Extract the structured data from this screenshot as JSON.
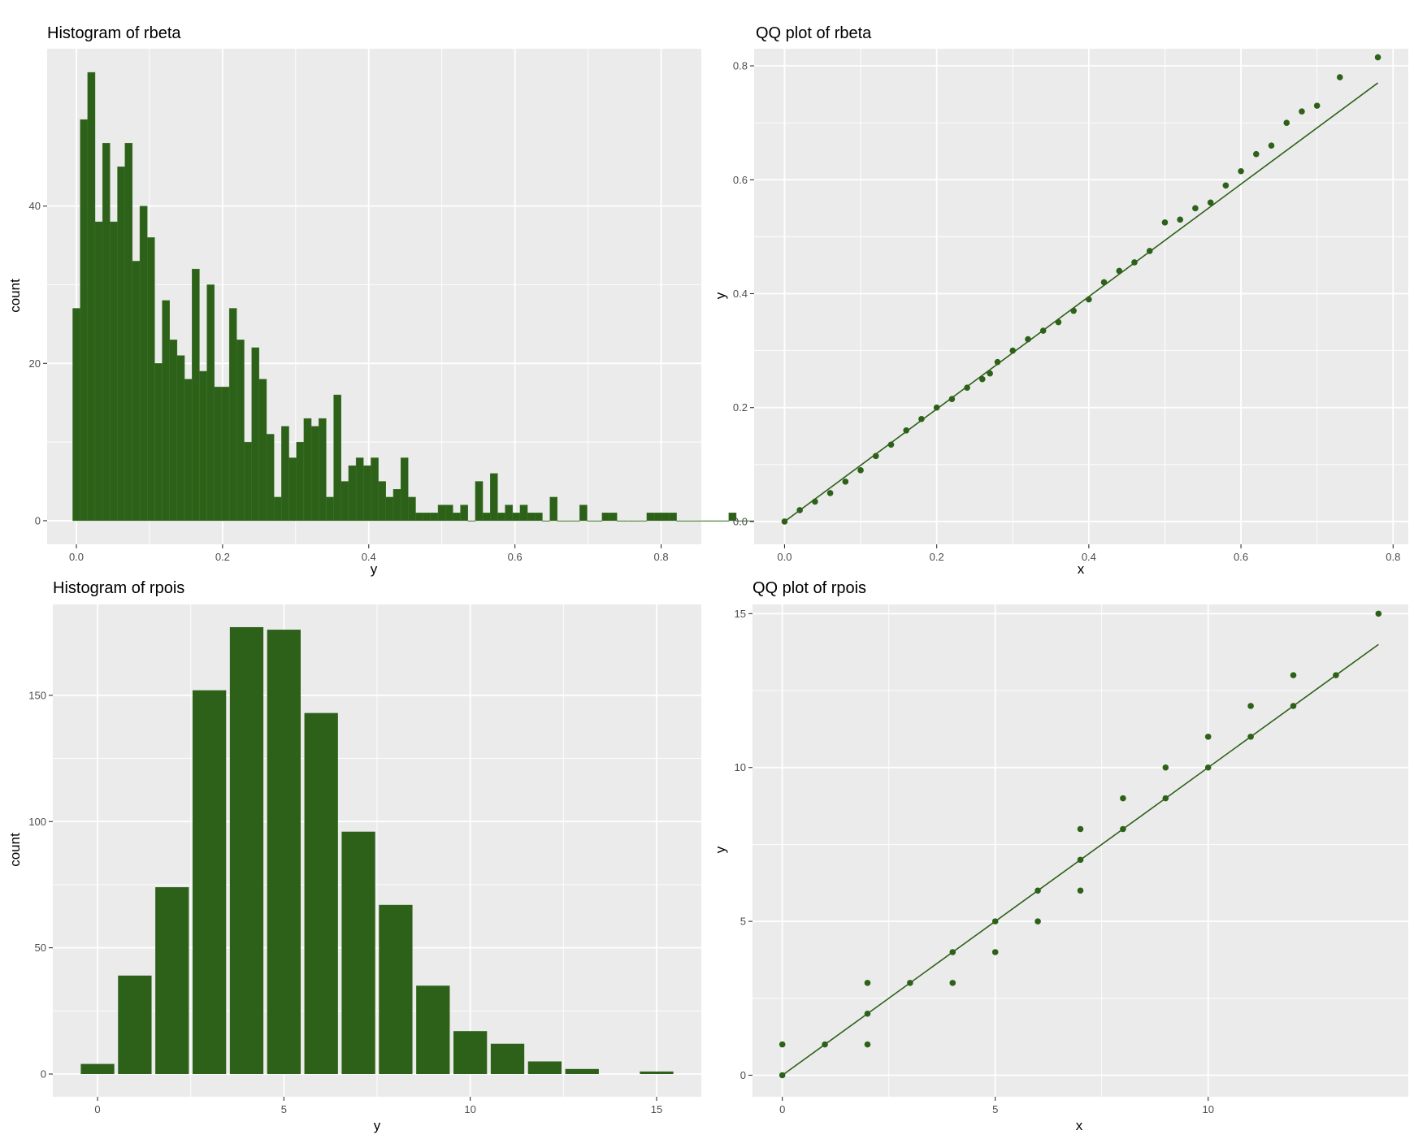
{
  "colors": {
    "fill": "#2d6119",
    "panel": "#ebebeb",
    "grid": "#ffffff",
    "tick": "#333333"
  },
  "chart_data": [
    {
      "type": "bar",
      "title": "Histogram of rbeta",
      "xlabel": "y",
      "ylabel": "count",
      "xlim": [
        -0.04,
        0.855
      ],
      "ylim": [
        -3,
        60
      ],
      "xticks": [
        0.0,
        0.2,
        0.4,
        0.6,
        0.8
      ],
      "xtick_labels": [
        "0.0",
        "0.2",
        "0.4",
        "0.6",
        "0.8"
      ],
      "yticks": [
        0,
        20,
        40
      ],
      "ytick_labels": [
        "0",
        "20",
        "40"
      ],
      "grid": true,
      "bin_start": -0.005,
      "binwidth": 0.0102,
      "values": [
        27,
        51,
        57,
        38,
        48,
        38,
        45,
        48,
        33,
        40,
        36,
        20,
        28,
        23,
        21,
        18,
        32,
        19,
        30,
        17,
        17,
        27,
        23,
        10,
        22,
        18,
        11,
        3,
        12,
        8,
        10,
        13,
        12,
        13,
        3,
        16,
        5,
        7,
        8,
        7,
        8,
        5,
        3,
        4,
        8,
        3,
        1,
        1,
        1,
        2,
        2,
        1,
        2,
        0,
        5,
        1,
        6,
        1,
        2,
        1,
        2,
        1,
        1,
        0,
        3,
        0,
        0,
        0,
        2,
        0,
        0,
        1,
        1,
        0,
        0,
        0,
        0,
        1,
        1,
        1,
        1,
        0,
        0,
        0,
        0,
        0,
        0,
        0,
        1,
        0,
        0,
        0,
        1
      ]
    },
    {
      "type": "scatter",
      "title": "QQ plot of rbeta",
      "xlabel": "x",
      "ylabel": "y",
      "xlim": [
        -0.04,
        0.82
      ],
      "ylim": [
        -0.04,
        0.83
      ],
      "xticks": [
        0.0,
        0.2,
        0.4,
        0.6,
        0.8
      ],
      "xtick_labels": [
        "0.0",
        "0.2",
        "0.4",
        "0.6",
        "0.8"
      ],
      "yticks": [
        0.0,
        0.2,
        0.4,
        0.6,
        0.8
      ],
      "ytick_labels": [
        "0.0",
        "0.2",
        "0.4",
        "0.6",
        "0.8"
      ],
      "grid": true,
      "line": {
        "x": [
          0.0,
          0.78
        ],
        "y": [
          0.0,
          0.77
        ]
      },
      "points": [
        [
          0.0,
          0.0
        ],
        [
          0.02,
          0.02
        ],
        [
          0.04,
          0.035
        ],
        [
          0.06,
          0.05
        ],
        [
          0.08,
          0.07
        ],
        [
          0.1,
          0.09
        ],
        [
          0.12,
          0.115
        ],
        [
          0.14,
          0.135
        ],
        [
          0.16,
          0.16
        ],
        [
          0.18,
          0.18
        ],
        [
          0.2,
          0.2
        ],
        [
          0.22,
          0.215
        ],
        [
          0.24,
          0.235
        ],
        [
          0.26,
          0.25
        ],
        [
          0.27,
          0.26
        ],
        [
          0.28,
          0.28
        ],
        [
          0.3,
          0.3
        ],
        [
          0.32,
          0.32
        ],
        [
          0.34,
          0.335
        ],
        [
          0.36,
          0.35
        ],
        [
          0.38,
          0.37
        ],
        [
          0.4,
          0.39
        ],
        [
          0.42,
          0.42
        ],
        [
          0.44,
          0.44
        ],
        [
          0.46,
          0.455
        ],
        [
          0.48,
          0.475
        ],
        [
          0.5,
          0.525
        ],
        [
          0.52,
          0.53
        ],
        [
          0.54,
          0.55
        ],
        [
          0.56,
          0.56
        ],
        [
          0.58,
          0.59
        ],
        [
          0.6,
          0.615
        ],
        [
          0.62,
          0.645
        ],
        [
          0.64,
          0.66
        ],
        [
          0.66,
          0.7
        ],
        [
          0.68,
          0.72
        ],
        [
          0.7,
          0.73
        ],
        [
          0.73,
          0.78
        ],
        [
          0.78,
          0.815
        ]
      ]
    },
    {
      "type": "bar",
      "title": "Histogram of rpois",
      "xlabel": "y",
      "ylabel": "count",
      "xlim": [
        -1.2,
        16.2
      ],
      "ylim": [
        -9,
        186
      ],
      "xticks": [
        0,
        5,
        10,
        15
      ],
      "xtick_labels": [
        "0",
        "5",
        "10",
        "15"
      ],
      "yticks": [
        0,
        50,
        100,
        150
      ],
      "ytick_labels": [
        "0",
        "50",
        "100",
        "150"
      ],
      "grid": true,
      "categories": [
        0,
        1,
        2,
        3,
        4,
        5,
        6,
        7,
        8,
        9,
        10,
        11,
        12,
        13,
        14,
        15
      ],
      "values": [
        4,
        39,
        74,
        152,
        177,
        176,
        143,
        96,
        67,
        35,
        17,
        12,
        5,
        2,
        0,
        1
      ]
    },
    {
      "type": "scatter",
      "title": "QQ plot of rpois",
      "xlabel": "x",
      "ylabel": "y",
      "xlim": [
        -0.7,
        14.7
      ],
      "ylim": [
        -0.7,
        15.3
      ],
      "xticks": [
        0,
        5,
        10
      ],
      "xtick_labels": [
        "0",
        "5",
        "10"
      ],
      "yticks": [
        0,
        5,
        10,
        15
      ],
      "ytick_labels": [
        "0",
        "5",
        "10",
        "15"
      ],
      "grid": true,
      "line": {
        "x": [
          0,
          14
        ],
        "y": [
          0,
          14
        ]
      },
      "points": [
        [
          0,
          0
        ],
        [
          0,
          1
        ],
        [
          1,
          1
        ],
        [
          2,
          1
        ],
        [
          2,
          2
        ],
        [
          2,
          3
        ],
        [
          3,
          3
        ],
        [
          4,
          3
        ],
        [
          4,
          4
        ],
        [
          5,
          4
        ],
        [
          5,
          5
        ],
        [
          6,
          5
        ],
        [
          6,
          6
        ],
        [
          7,
          6
        ],
        [
          7,
          7
        ],
        [
          7,
          8
        ],
        [
          8,
          8
        ],
        [
          8,
          9
        ],
        [
          9,
          9
        ],
        [
          9,
          10
        ],
        [
          10,
          10
        ],
        [
          10,
          11
        ],
        [
          11,
          11
        ],
        [
          11,
          12
        ],
        [
          12,
          12
        ],
        [
          12,
          13
        ],
        [
          13,
          13
        ],
        [
          14,
          15
        ]
      ]
    }
  ]
}
